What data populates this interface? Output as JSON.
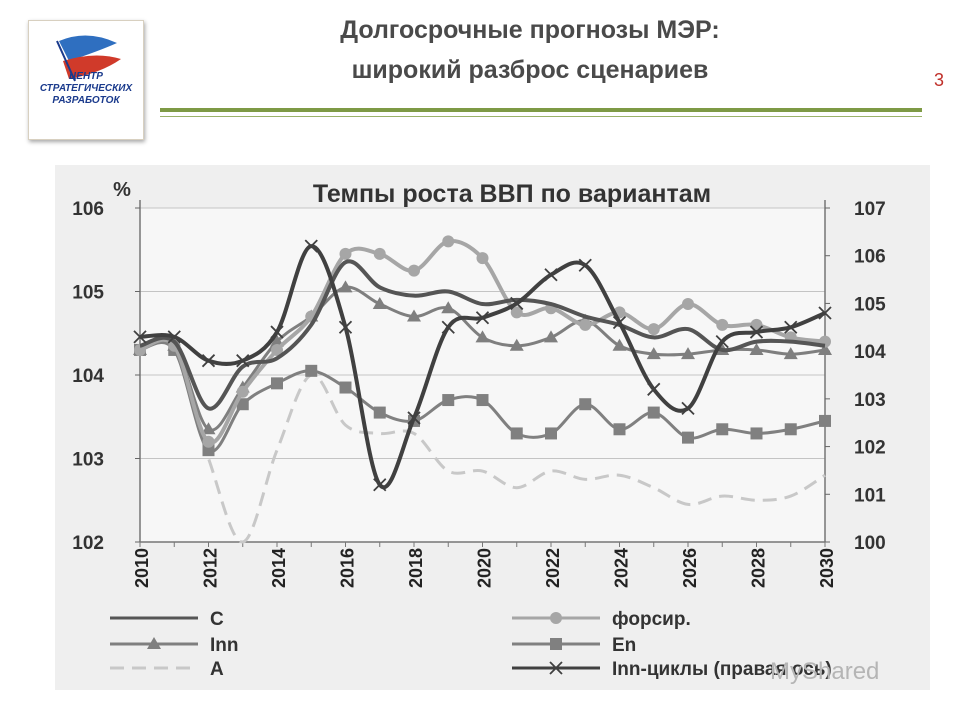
{
  "slide": {
    "title_line1": "Долгосрочные прогнозы МЭР:",
    "title_line2": "широкий разброс сценариев",
    "page_number": "3",
    "watermark": "MyShared",
    "colors": {
      "title": "#4a4a4a",
      "rule": "#7e9a45",
      "page_number": "#c0302a"
    }
  },
  "logo": {
    "line1": "ЦЕНТР",
    "line2": "СТРАТЕГИЧЕСКИХ",
    "line3": "РАЗРАБОТОК",
    "colors": {
      "text": "#1a3a8c",
      "flag_blue": "#2f6fc0",
      "flag_red": "#d03a2a"
    }
  },
  "chart_data": {
    "type": "line",
    "title": "Темпы роста ВВП по вариантам",
    "ylabel": "%",
    "ylim": [
      102,
      106
    ],
    "y2lim": [
      100,
      107
    ],
    "yticks": [
      "106",
      "105",
      "104",
      "103",
      "102"
    ],
    "y2ticks": [
      "107",
      "106",
      "105",
      "104",
      "103",
      "102",
      "101",
      "100"
    ],
    "x": [
      2010,
      2011,
      2012,
      2013,
      2014,
      2015,
      2016,
      2017,
      2018,
      2019,
      2020,
      2021,
      2022,
      2023,
      2024,
      2025,
      2026,
      2027,
      2028,
      2029,
      2030
    ],
    "xticks": [
      "2010",
      "2012",
      "2014",
      "2016",
      "2018",
      "2020",
      "2022",
      "2024",
      "2026",
      "2028",
      "2030"
    ],
    "grid": "horizontal",
    "legend_position": "bottom",
    "series": [
      {
        "name": "C",
        "axis": "left",
        "color": "#555555",
        "marker": "none",
        "dash": "solid",
        "values": [
          104.35,
          104.4,
          103.6,
          104.1,
          104.2,
          104.6,
          105.35,
          105.05,
          104.95,
          105.0,
          104.85,
          104.9,
          104.85,
          104.7,
          104.6,
          104.45,
          104.55,
          104.3,
          104.4,
          104.4,
          104.35
        ]
      },
      {
        "name": "форсир.",
        "axis": "left",
        "color": "#a6a6a6",
        "marker": "circle",
        "dash": "solid",
        "values": [
          104.3,
          104.35,
          103.2,
          103.8,
          104.3,
          104.7,
          105.45,
          105.45,
          105.25,
          105.6,
          105.4,
          104.75,
          104.8,
          104.6,
          104.75,
          104.55,
          104.85,
          104.6,
          104.6,
          104.45,
          104.4
        ]
      },
      {
        "name": "Inn",
        "axis": "left",
        "color": "#7f7f7f",
        "marker": "triangle",
        "dash": "solid",
        "values": [
          104.3,
          104.35,
          103.35,
          103.85,
          104.4,
          104.7,
          105.05,
          104.85,
          104.7,
          104.8,
          104.45,
          104.35,
          104.45,
          104.65,
          104.35,
          104.25,
          104.25,
          104.3,
          104.3,
          104.25,
          104.3
        ]
      },
      {
        "name": "En",
        "axis": "left",
        "color": "#808080",
        "marker": "square",
        "dash": "solid",
        "values": [
          104.3,
          104.3,
          103.1,
          103.65,
          103.9,
          104.05,
          103.85,
          103.55,
          103.45,
          103.7,
          103.7,
          103.3,
          103.3,
          103.65,
          103.35,
          103.55,
          103.25,
          103.35,
          103.3,
          103.35,
          103.45
        ]
      },
      {
        "name": "A",
        "axis": "left",
        "color": "#c8c8c8",
        "marker": "none",
        "dash": "dashed",
        "values": [
          104.3,
          104.3,
          103.0,
          102.0,
          103.1,
          104.0,
          103.4,
          103.3,
          103.3,
          102.85,
          102.85,
          102.65,
          102.85,
          102.75,
          102.8,
          102.65,
          102.45,
          102.55,
          102.5,
          102.55,
          102.8
        ]
      },
      {
        "name": "Inn-циклы (правая ось)",
        "axis": "right",
        "color": "#404040",
        "marker": "x",
        "dash": "solid",
        "values": [
          104.3,
          104.3,
          103.8,
          103.8,
          104.4,
          106.2,
          104.5,
          101.2,
          102.6,
          104.5,
          104.7,
          105.0,
          105.6,
          105.8,
          104.6,
          103.2,
          102.8,
          104.2,
          104.4,
          104.5,
          104.8
        ]
      }
    ]
  }
}
